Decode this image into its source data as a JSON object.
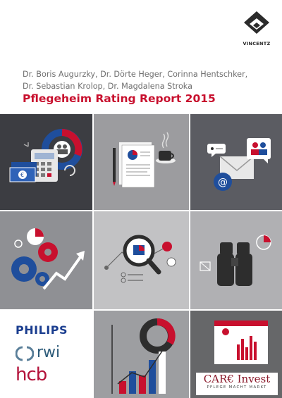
{
  "publisher": {
    "logo_text": "VINCENTZ"
  },
  "authors": {
    "line1": "Dr. Boris Augurzky, Dr. Dörte Heger, Corinna Hentschker,",
    "line2": "Dr. Sebastian Krolop, Dr. Magdalena Stroka"
  },
  "title": "Pflegeheim Rating Report 2015",
  "partners": {
    "philips": "PHILIPS",
    "rwi": "rwi",
    "hcb": "hcb"
  },
  "careinvest": {
    "name": "CAR€ Invest",
    "tagline": "PFLEGE MACHT MARKT"
  },
  "colors": {
    "accent": "#c8102e",
    "blue": "#1f4e9c",
    "dark": "#3c3d42"
  },
  "icons": [
    "calculator-icon",
    "money-icon",
    "pie-chart-icon",
    "document-icon",
    "coffee-cup-icon",
    "envelope-icon",
    "email-at-icon",
    "gears-icon",
    "growth-arrow-icon",
    "magnifier-icon",
    "binoculars-icon",
    "bar-chart-icon",
    "laptop-icon"
  ]
}
